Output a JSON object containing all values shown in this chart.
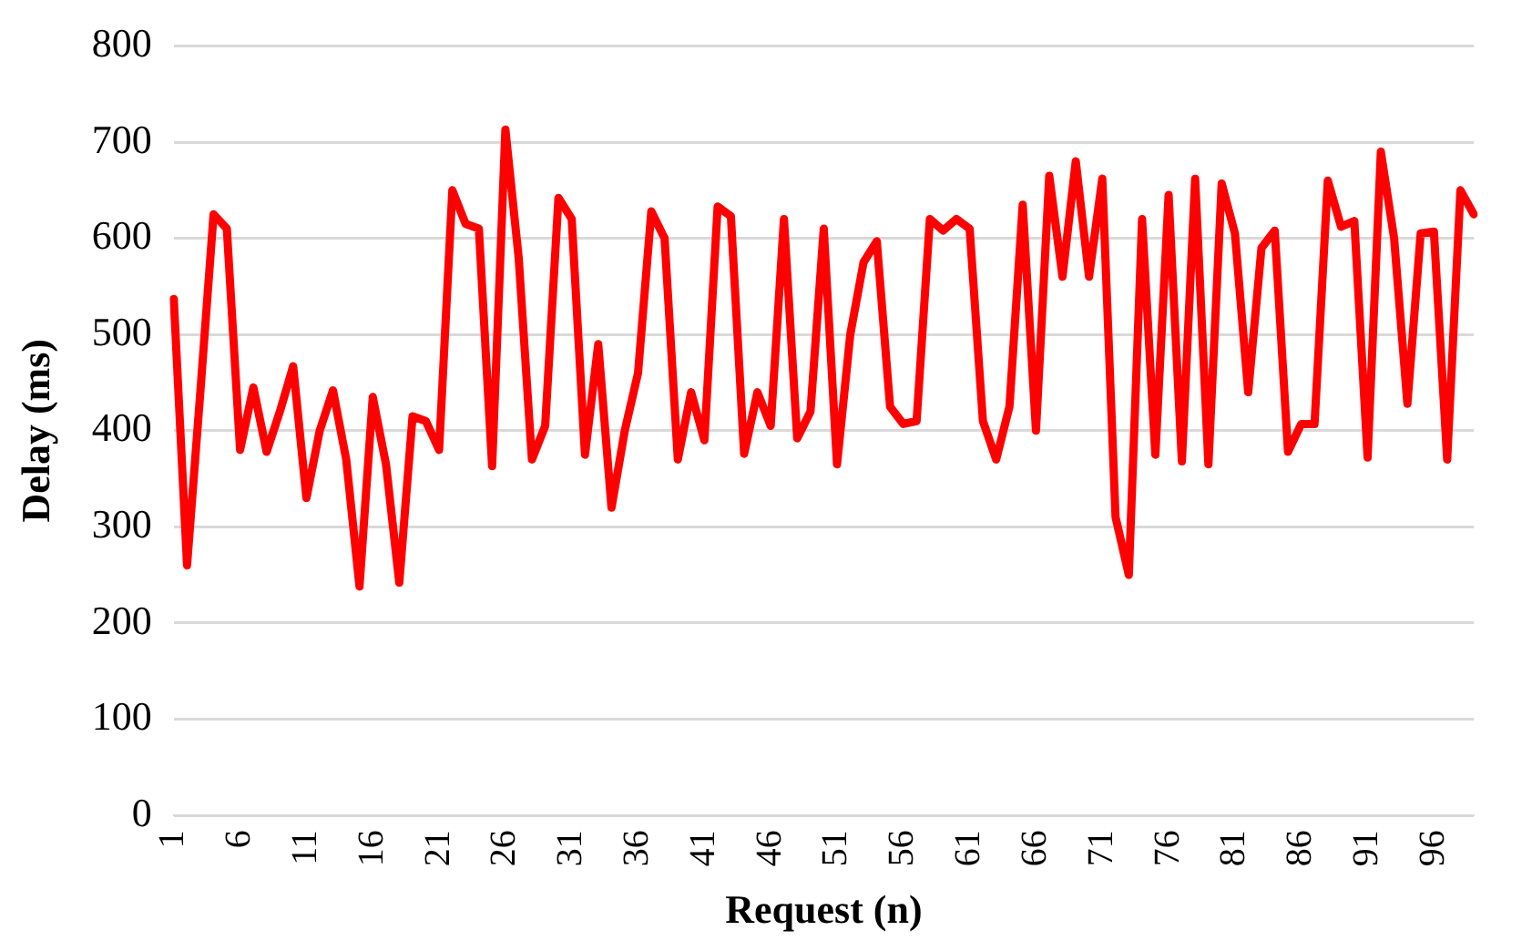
{
  "chart_data": {
    "type": "line",
    "xlabel": "Request (n)",
    "ylabel": "Delay (ms)",
    "categories": [
      "1",
      null,
      null,
      null,
      null,
      "6",
      null,
      null,
      null,
      null,
      "11",
      null,
      null,
      null,
      null,
      "16",
      null,
      null,
      null,
      null,
      "21",
      null,
      null,
      null,
      null,
      "26",
      null,
      null,
      null,
      null,
      "31",
      null,
      null,
      null,
      null,
      "36",
      null,
      null,
      null,
      null,
      "41",
      null,
      null,
      null,
      null,
      "46",
      null,
      null,
      null,
      null,
      "51",
      null,
      null,
      null,
      null,
      "56",
      null,
      null,
      null,
      null,
      "61",
      null,
      null,
      null,
      null,
      "66",
      null,
      null,
      null,
      null,
      "71",
      null,
      null,
      null,
      null,
      "76",
      null,
      null,
      null,
      null,
      "81",
      null,
      null,
      null,
      null,
      "86",
      null,
      null,
      null,
      null,
      "91",
      null,
      null,
      null,
      null,
      "96",
      null,
      null,
      null
    ],
    "series": [
      {
        "color": "#ff0000",
        "values": [
          537,
          260,
          440,
          625,
          610,
          380,
          445,
          378,
          420,
          467,
          330,
          400,
          442,
          370,
          238,
          435,
          365,
          242,
          415,
          410,
          380,
          650,
          615,
          610,
          363,
          713,
          580,
          370,
          405,
          642,
          620,
          375,
          490,
          320,
          400,
          460,
          628,
          600,
          370,
          440,
          390,
          633,
          623,
          376,
          440,
          405,
          620,
          392,
          420,
          610,
          365,
          500,
          575,
          597,
          425,
          407,
          410,
          620,
          608,
          620,
          610,
          410,
          370,
          425,
          635,
          400,
          665,
          560,
          680,
          560,
          662,
          310,
          250,
          620,
          375,
          645,
          368,
          662,
          365,
          657,
          605,
          440,
          590,
          608,
          378,
          407,
          407,
          660,
          612,
          618,
          372,
          690,
          600,
          428,
          605,
          607,
          370,
          650,
          625
        ]
      }
    ],
    "ylim": [
      0,
      800
    ],
    "yticks": [
      0,
      100,
      200,
      300,
      400,
      500,
      600,
      700,
      800
    ],
    "grid": "y",
    "legend": false,
    "marker": "none",
    "line_style": "solid"
  }
}
